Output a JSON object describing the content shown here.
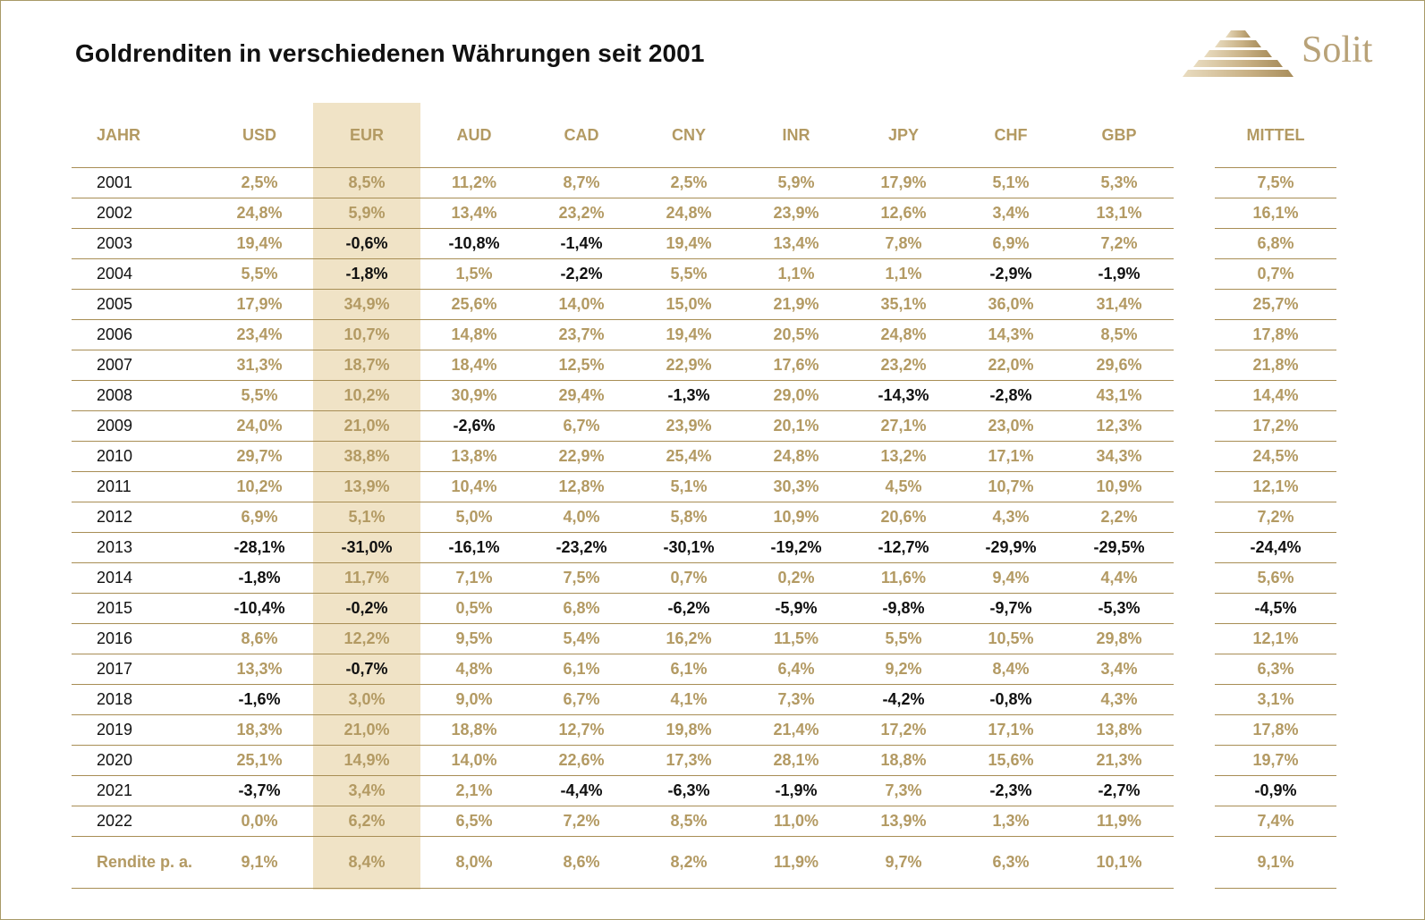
{
  "title": "Goldrenditen in verschiedenen Währungen seit 2001",
  "logo": {
    "text": "Solit"
  },
  "colors": {
    "gold": "#b39a63",
    "highlight_band": "#f0e3c6",
    "negative": "#111111",
    "rule": "#a88e55"
  },
  "chart_data": {
    "type": "table",
    "title": "Goldrenditen in verschiedenen Währungen seit 2001",
    "highlighted_column": "EUR",
    "columns": [
      "JAHR",
      "USD",
      "EUR",
      "AUD",
      "CAD",
      "CNY",
      "INR",
      "JPY",
      "CHF",
      "GBP",
      "MITTEL"
    ],
    "rows": [
      [
        "2001",
        "2,5%",
        "8,5%",
        "11,2%",
        "8,7%",
        "2,5%",
        "5,9%",
        "17,9%",
        "5,1%",
        "5,3%",
        "7,5%"
      ],
      [
        "2002",
        "24,8%",
        "5,9%",
        "13,4%",
        "23,2%",
        "24,8%",
        "23,9%",
        "12,6%",
        "3,4%",
        "13,1%",
        "16,1%"
      ],
      [
        "2003",
        "19,4%",
        "-0,6%",
        "-10,8%",
        "-1,4%",
        "19,4%",
        "13,4%",
        "7,8%",
        "6,9%",
        "7,2%",
        "6,8%"
      ],
      [
        "2004",
        "5,5%",
        "-1,8%",
        "1,5%",
        "-2,2%",
        "5,5%",
        "1,1%",
        "1,1%",
        "-2,9%",
        "-1,9%",
        "0,7%"
      ],
      [
        "2005",
        "17,9%",
        "34,9%",
        "25,6%",
        "14,0%",
        "15,0%",
        "21,9%",
        "35,1%",
        "36,0%",
        "31,4%",
        "25,7%"
      ],
      [
        "2006",
        "23,4%",
        "10,7%",
        "14,8%",
        "23,7%",
        "19,4%",
        "20,5%",
        "24,8%",
        "14,3%",
        "8,5%",
        "17,8%"
      ],
      [
        "2007",
        "31,3%",
        "18,7%",
        "18,4%",
        "12,5%",
        "22,9%",
        "17,6%",
        "23,2%",
        "22,0%",
        "29,6%",
        "21,8%"
      ],
      [
        "2008",
        "5,5%",
        "10,2%",
        "30,9%",
        "29,4%",
        "-1,3%",
        "29,0%",
        "-14,3%",
        "-2,8%",
        "43,1%",
        "14,4%"
      ],
      [
        "2009",
        "24,0%",
        "21,0%",
        "-2,6%",
        "6,7%",
        "23,9%",
        "20,1%",
        "27,1%",
        "23,0%",
        "12,3%",
        "17,2%"
      ],
      [
        "2010",
        "29,7%",
        "38,8%",
        "13,8%",
        "22,9%",
        "25,4%",
        "24,8%",
        "13,2%",
        "17,1%",
        "34,3%",
        "24,5%"
      ],
      [
        "2011",
        "10,2%",
        "13,9%",
        "10,4%",
        "12,8%",
        "5,1%",
        "30,3%",
        "4,5%",
        "10,7%",
        "10,9%",
        "12,1%"
      ],
      [
        "2012",
        "6,9%",
        "5,1%",
        "5,0%",
        "4,0%",
        "5,8%",
        "10,9%",
        "20,6%",
        "4,3%",
        "2,2%",
        "7,2%"
      ],
      [
        "2013",
        "-28,1%",
        "-31,0%",
        "-16,1%",
        "-23,2%",
        "-30,1%",
        "-19,2%",
        "-12,7%",
        "-29,9%",
        "-29,5%",
        "-24,4%"
      ],
      [
        "2014",
        "-1,8%",
        "11,7%",
        "7,1%",
        "7,5%",
        "0,7%",
        "0,2%",
        "11,6%",
        "9,4%",
        "4,4%",
        "5,6%"
      ],
      [
        "2015",
        "-10,4%",
        "-0,2%",
        "0,5%",
        "6,8%",
        "-6,2%",
        "-5,9%",
        "-9,8%",
        "-9,7%",
        "-5,3%",
        "-4,5%"
      ],
      [
        "2016",
        "8,6%",
        "12,2%",
        "9,5%",
        "5,4%",
        "16,2%",
        "11,5%",
        "5,5%",
        "10,5%",
        "29,8%",
        "12,1%"
      ],
      [
        "2017",
        "13,3%",
        "-0,7%",
        "4,8%",
        "6,1%",
        "6,1%",
        "6,4%",
        "9,2%",
        "8,4%",
        "3,4%",
        "6,3%"
      ],
      [
        "2018",
        "-1,6%",
        "3,0%",
        "9,0%",
        "6,7%",
        "4,1%",
        "7,3%",
        "-4,2%",
        "-0,8%",
        "4,3%",
        "3,1%"
      ],
      [
        "2019",
        "18,3%",
        "21,0%",
        "18,8%",
        "12,7%",
        "19,8%",
        "21,4%",
        "17,2%",
        "17,1%",
        "13,8%",
        "17,8%"
      ],
      [
        "2020",
        "25,1%",
        "14,9%",
        "14,0%",
        "22,6%",
        "17,3%",
        "28,1%",
        "18,8%",
        "15,6%",
        "21,3%",
        "19,7%"
      ],
      [
        "2021",
        "-3,7%",
        "3,4%",
        "2,1%",
        "-4,4%",
        "-6,3%",
        "-1,9%",
        "7,3%",
        "-2,3%",
        "-2,7%",
        "-0,9%"
      ],
      [
        "2022",
        "0,0%",
        "6,2%",
        "6,5%",
        "7,2%",
        "8,5%",
        "11,0%",
        "13,9%",
        "1,3%",
        "11,9%",
        "7,4%"
      ]
    ],
    "footer": [
      "Rendite p. a.",
      "9,1%",
      "8,4%",
      "8,0%",
      "8,6%",
      "8,2%",
      "11,9%",
      "9,7%",
      "6,3%",
      "10,1%",
      "9,1%"
    ]
  }
}
